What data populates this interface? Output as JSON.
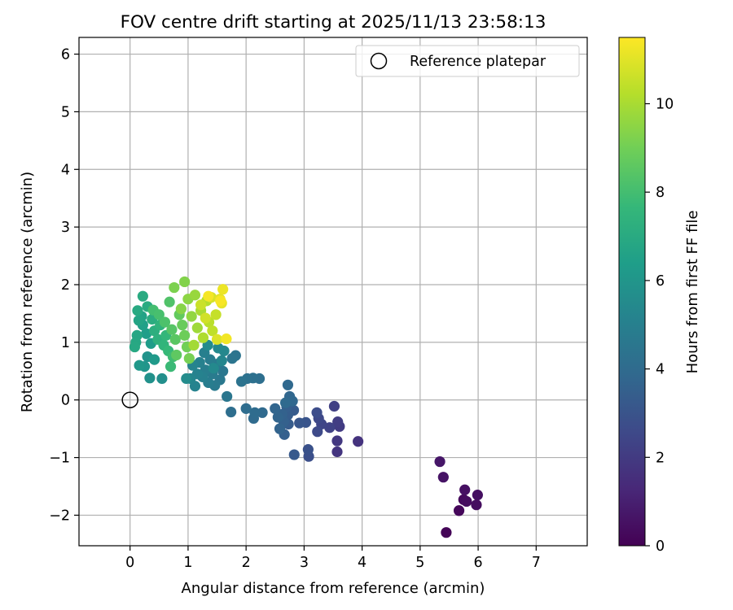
{
  "chart_data": {
    "type": "scatter",
    "title": "FOV centre drift starting at 2025/11/13 23:58:13",
    "xlabel": "Angular distance from reference (arcmin)",
    "ylabel": "Rotation from reference (arcmin)",
    "xlim": [
      -0.88,
      7.88
    ],
    "ylim": [
      -2.53,
      6.29
    ],
    "xticks": [
      0,
      1,
      2,
      3,
      4,
      5,
      6,
      7
    ],
    "yticks": [
      -2,
      -1,
      0,
      1,
      2,
      3,
      4,
      5,
      6
    ],
    "grid": true,
    "legend": {
      "placement": "top-right",
      "entries": [
        "Reference platepar"
      ]
    },
    "reference_point": {
      "label": "Reference platepar",
      "x": 0,
      "y": 0
    },
    "colorbar": {
      "label": "Hours from first FF file",
      "range": [
        0,
        11.5
      ],
      "ticks": [
        0,
        2,
        4,
        6,
        8,
        10
      ],
      "colormap": "viridis",
      "colors": [
        "#440154",
        "#482878",
        "#3e4989",
        "#31688e",
        "#26828e",
        "#1f9e89",
        "#35b779",
        "#6ece58",
        "#b5de2b",
        "#fde725"
      ]
    },
    "series": [
      {
        "name": "FOV centre",
        "points": [
          {
            "x": 5.45,
            "y": -2.3,
            "t": 0.1
          },
          {
            "x": 5.67,
            "y": -1.92,
            "t": 0.2
          },
          {
            "x": 5.75,
            "y": -1.73,
            "t": 0.3
          },
          {
            "x": 5.8,
            "y": -1.76,
            "t": 0.35
          },
          {
            "x": 5.97,
            "y": -1.82,
            "t": 0.4
          },
          {
            "x": 5.99,
            "y": -1.65,
            "t": 0.45
          },
          {
            "x": 5.77,
            "y": -1.56,
            "t": 0.5
          },
          {
            "x": 5.4,
            "y": -1.34,
            "t": 0.6
          },
          {
            "x": 5.34,
            "y": -1.07,
            "t": 0.7
          },
          {
            "x": 3.93,
            "y": -0.72,
            "t": 1.7
          },
          {
            "x": 3.57,
            "y": -0.9,
            "t": 1.8
          },
          {
            "x": 3.57,
            "y": -0.71,
            "t": 1.9
          },
          {
            "x": 3.61,
            "y": -0.46,
            "t": 2.0
          },
          {
            "x": 3.58,
            "y": -0.38,
            "t": 2.1
          },
          {
            "x": 3.52,
            "y": -0.11,
            "t": 2.2
          },
          {
            "x": 3.44,
            "y": -0.48,
            "t": 2.3
          },
          {
            "x": 3.3,
            "y": -0.42,
            "t": 2.4
          },
          {
            "x": 3.25,
            "y": -0.32,
            "t": 2.5
          },
          {
            "x": 3.23,
            "y": -0.55,
            "t": 2.6
          },
          {
            "x": 3.22,
            "y": -0.22,
            "t": 2.7
          },
          {
            "x": 3.08,
            "y": -0.98,
            "t": 2.8
          },
          {
            "x": 3.07,
            "y": -0.86,
            "t": 2.9
          },
          {
            "x": 3.03,
            "y": -0.39,
            "t": 3.0
          },
          {
            "x": 2.92,
            "y": -0.4,
            "t": 3.1
          },
          {
            "x": 2.83,
            "y": -0.95,
            "t": 3.2
          },
          {
            "x": 2.82,
            "y": -0.18,
            "t": 3.3
          },
          {
            "x": 2.73,
            "y": -0.42,
            "t": 3.35
          },
          {
            "x": 2.72,
            "y": -0.26,
            "t": 3.4
          },
          {
            "x": 2.7,
            "y": -0.12,
            "t": 3.45
          },
          {
            "x": 2.66,
            "y": -0.6,
            "t": 3.5
          },
          {
            "x": 2.65,
            "y": -0.38,
            "t": 3.55
          },
          {
            "x": 2.62,
            "y": -0.25,
            "t": 3.6
          },
          {
            "x": 2.58,
            "y": -0.5,
            "t": 3.65
          },
          {
            "x": 2.55,
            "y": -0.3,
            "t": 3.7
          },
          {
            "x": 2.5,
            "y": -0.15,
            "t": 3.75
          },
          {
            "x": 2.75,
            "y": 0.06,
            "t": 3.8
          },
          {
            "x": 2.8,
            "y": -0.02,
            "t": 3.85
          },
          {
            "x": 2.72,
            "y": 0.26,
            "t": 3.9
          },
          {
            "x": 2.68,
            "y": -0.05,
            "t": 3.92
          },
          {
            "x": 2.28,
            "y": -0.22,
            "t": 3.95
          },
          {
            "x": 2.13,
            "y": -0.32,
            "t": 4.0
          },
          {
            "x": 2.15,
            "y": -0.22,
            "t": 4.05
          },
          {
            "x": 2.0,
            "y": -0.15,
            "t": 4.1
          },
          {
            "x": 1.74,
            "y": -0.21,
            "t": 4.15
          },
          {
            "x": 2.23,
            "y": 0.37,
            "t": 4.2
          },
          {
            "x": 2.12,
            "y": 0.38,
            "t": 4.25
          },
          {
            "x": 2.02,
            "y": 0.37,
            "t": 4.3
          },
          {
            "x": 1.92,
            "y": 0.32,
            "t": 4.35
          },
          {
            "x": 1.82,
            "y": 0.77,
            "t": 4.4
          },
          {
            "x": 1.76,
            "y": 0.72,
            "t": 4.45
          },
          {
            "x": 1.67,
            "y": 0.06,
            "t": 4.5
          },
          {
            "x": 1.6,
            "y": 0.5,
            "t": 4.55
          },
          {
            "x": 1.55,
            "y": 0.35,
            "t": 4.6
          },
          {
            "x": 1.5,
            "y": 0.62,
            "t": 4.65
          },
          {
            "x": 1.46,
            "y": 0.25,
            "t": 4.7
          },
          {
            "x": 1.42,
            "y": 0.45,
            "t": 4.75
          },
          {
            "x": 1.38,
            "y": 0.7,
            "t": 4.8
          },
          {
            "x": 1.35,
            "y": 0.3,
            "t": 4.85
          },
          {
            "x": 1.3,
            "y": 0.52,
            "t": 4.9
          },
          {
            "x": 1.28,
            "y": 0.82,
            "t": 4.95
          },
          {
            "x": 1.25,
            "y": 0.4,
            "t": 5.0
          },
          {
            "x": 1.2,
            "y": 0.65,
            "t": 5.05
          },
          {
            "x": 1.16,
            "y": 0.45,
            "t": 5.1
          },
          {
            "x": 1.12,
            "y": 0.24,
            "t": 5.15
          },
          {
            "x": 1.08,
            "y": 0.6,
            "t": 5.2
          },
          {
            "x": 1.04,
            "y": 0.37,
            "t": 5.25
          },
          {
            "x": 1.58,
            "y": 0.68,
            "t": 5.3
          },
          {
            "x": 1.62,
            "y": 0.85,
            "t": 5.35
          },
          {
            "x": 1.52,
            "y": 0.9,
            "t": 5.4
          },
          {
            "x": 1.44,
            "y": 0.55,
            "t": 5.45
          },
          {
            "x": 1.34,
            "y": 0.95,
            "t": 5.5
          },
          {
            "x": 0.97,
            "y": 0.37,
            "t": 5.55
          },
          {
            "x": 0.55,
            "y": 0.37,
            "t": 5.7
          },
          {
            "x": 0.34,
            "y": 0.38,
            "t": 5.8
          },
          {
            "x": 0.3,
            "y": 0.75,
            "t": 5.9
          },
          {
            "x": 0.25,
            "y": 0.58,
            "t": 6.0
          },
          {
            "x": 0.16,
            "y": 0.6,
            "t": 6.1
          },
          {
            "x": 0.42,
            "y": 0.7,
            "t": 6.2
          },
          {
            "x": 0.36,
            "y": 0.98,
            "t": 6.3
          },
          {
            "x": 0.28,
            "y": 1.15,
            "t": 6.4
          },
          {
            "x": 0.22,
            "y": 1.3,
            "t": 6.5
          },
          {
            "x": 0.2,
            "y": 1.45,
            "t": 6.6
          },
          {
            "x": 0.15,
            "y": 1.38,
            "t": 6.7
          },
          {
            "x": 0.12,
            "y": 1.12,
            "t": 6.8
          },
          {
            "x": 0.1,
            "y": 1.0,
            "t": 6.85
          },
          {
            "x": 0.08,
            "y": 0.92,
            "t": 6.9
          },
          {
            "x": 0.13,
            "y": 1.55,
            "t": 6.95
          },
          {
            "x": 0.22,
            "y": 1.8,
            "t": 7.0
          },
          {
            "x": 0.3,
            "y": 1.62,
            "t": 7.05
          },
          {
            "x": 0.38,
            "y": 1.4,
            "t": 7.1
          },
          {
            "x": 0.42,
            "y": 1.2,
            "t": 7.2
          },
          {
            "x": 0.48,
            "y": 1.05,
            "t": 7.3
          },
          {
            "x": 0.52,
            "y": 1.3,
            "t": 7.4
          },
          {
            "x": 0.58,
            "y": 0.95,
            "t": 7.5
          },
          {
            "x": 0.62,
            "y": 1.12,
            "t": 7.6
          },
          {
            "x": 0.66,
            "y": 0.85,
            "t": 7.7
          },
          {
            "x": 0.7,
            "y": 0.58,
            "t": 7.8
          },
          {
            "x": 0.74,
            "y": 0.75,
            "t": 7.9
          },
          {
            "x": 0.4,
            "y": 1.56,
            "t": 8.0
          },
          {
            "x": 0.5,
            "y": 1.48,
            "t": 8.1
          },
          {
            "x": 0.6,
            "y": 1.35,
            "t": 8.2
          },
          {
            "x": 0.68,
            "y": 1.7,
            "t": 8.3
          },
          {
            "x": 0.72,
            "y": 1.22,
            "t": 8.4
          },
          {
            "x": 0.78,
            "y": 1.05,
            "t": 8.5
          },
          {
            "x": 0.8,
            "y": 0.78,
            "t": 8.6
          },
          {
            "x": 0.85,
            "y": 1.48,
            "t": 8.7
          },
          {
            "x": 0.9,
            "y": 1.3,
            "t": 8.8
          },
          {
            "x": 0.94,
            "y": 1.12,
            "t": 8.9
          },
          {
            "x": 0.98,
            "y": 0.92,
            "t": 9.0
          },
          {
            "x": 1.02,
            "y": 0.72,
            "t": 9.1
          },
          {
            "x": 0.76,
            "y": 1.95,
            "t": 9.2
          },
          {
            "x": 0.94,
            "y": 2.05,
            "t": 9.3
          },
          {
            "x": 0.88,
            "y": 1.58,
            "t": 9.4
          },
          {
            "x": 1.0,
            "y": 1.75,
            "t": 9.5
          },
          {
            "x": 1.06,
            "y": 1.45,
            "t": 9.6
          },
          {
            "x": 1.12,
            "y": 1.82,
            "t": 9.7
          },
          {
            "x": 1.16,
            "y": 1.25,
            "t": 9.8
          },
          {
            "x": 1.1,
            "y": 0.95,
            "t": 9.9
          },
          {
            "x": 1.22,
            "y": 1.55,
            "t": 10.0
          },
          {
            "x": 1.26,
            "y": 1.08,
            "t": 10.1
          },
          {
            "x": 1.32,
            "y": 1.72,
            "t": 10.2
          },
          {
            "x": 1.36,
            "y": 1.35,
            "t": 10.3
          },
          {
            "x": 1.42,
            "y": 1.2,
            "t": 10.4
          },
          {
            "x": 1.48,
            "y": 1.48,
            "t": 10.5
          },
          {
            "x": 1.22,
            "y": 1.65,
            "t": 10.6
          },
          {
            "x": 1.3,
            "y": 1.42,
            "t": 10.7
          },
          {
            "x": 1.4,
            "y": 1.78,
            "t": 10.8
          },
          {
            "x": 1.5,
            "y": 1.05,
            "t": 10.9
          },
          {
            "x": 1.55,
            "y": 1.75,
            "t": 11.0
          },
          {
            "x": 1.58,
            "y": 1.68,
            "t": 11.1
          },
          {
            "x": 1.6,
            "y": 1.92,
            "t": 11.2
          },
          {
            "x": 1.66,
            "y": 1.06,
            "t": 11.3
          },
          {
            "x": 1.35,
            "y": 1.8,
            "t": 11.35
          },
          {
            "x": 1.56,
            "y": 1.72,
            "t": 11.4
          }
        ]
      }
    ]
  }
}
